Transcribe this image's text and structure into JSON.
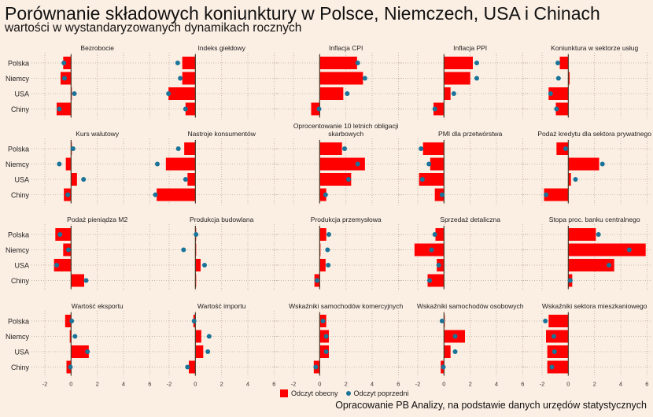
{
  "header": {
    "title": "Porównanie składowych koniunktury w Polsce, Niemczech, USA i Chinach",
    "subtitle": "wartości w wystandaryzowanych dynamikach rocznych"
  },
  "caption": "Opracowanie PB Analizy, na podstawie danych urzędów statystycznych",
  "legend": {
    "current": "Odczyt obecny",
    "previous": "Odczyt poprzedni"
  },
  "colors": {
    "bar": "#ff0000",
    "dot": "#1a7499",
    "background": "#fbeee3",
    "grid": "#b8aa9c",
    "axis": "#4a3a2a"
  },
  "chart_data": {
    "type": "bar",
    "orientation": "horizontal",
    "facets": "small-multiples 4x5",
    "categories": [
      "Polska",
      "Niemcy",
      "USA",
      "Chiny"
    ],
    "xlim": [
      -2,
      6
    ],
    "xticks": [
      "-2",
      "0",
      "2",
      "4",
      "6"
    ],
    "grid": true,
    "legend_position": "bottom",
    "series_names": [
      "Odczyt obecny",
      "Odczyt poprzedni"
    ],
    "panels": [
      {
        "title": "Bezrobocie",
        "current": [
          -0.6,
          -0.8,
          0.05,
          -1.1
        ],
        "previous": [
          -0.55,
          -0.5,
          0.25,
          -0.9
        ]
      },
      {
        "title": "Indeks giełdowy",
        "current": [
          -1.0,
          -1.0,
          -2.05,
          -0.75
        ],
        "previous": [
          -1.35,
          -1.15,
          -2.05,
          -0.75
        ]
      },
      {
        "title": "Inflacja CPI",
        "current": [
          2.85,
          3.3,
          1.8,
          -0.65
        ],
        "previous": [
          2.9,
          3.45,
          2.1,
          -0.05
        ]
      },
      {
        "title": "Inflacja PPI",
        "current": [
          2.2,
          2.0,
          0.5,
          -0.8
        ],
        "previous": [
          2.5,
          2.5,
          0.75,
          -0.7
        ]
      },
      {
        "title": "Koniunktura w sektorze usług",
        "current": [
          -0.65,
          0.1,
          -1.5,
          -0.95
        ],
        "previous": [
          -0.8,
          -0.75,
          -1.35,
          -0.9
        ]
      },
      {
        "title": "Kurs walutowy",
        "current": [
          0.0,
          -0.4,
          0.45,
          -0.55
        ],
        "previous": [
          0.15,
          -0.9,
          0.95,
          -0.25
        ]
      },
      {
        "title": "Nastroje konsumentów",
        "current": [
          -0.85,
          -2.25,
          -0.6,
          -2.95
        ],
        "previous": [
          -1.3,
          -2.9,
          -0.75,
          -3.05
        ]
      },
      {
        "title": "Oprocentowanie 10 letnich obligacji skarbowych",
        "current": [
          1.7,
          3.45,
          2.4,
          0.5
        ],
        "previous": [
          1.9,
          2.9,
          2.2,
          0.45
        ]
      },
      {
        "title": "PMI dla przetwórstwa",
        "current": [
          -1.6,
          -1.05,
          -1.9,
          -0.7
        ],
        "previous": [
          -1.75,
          -1.15,
          -1.65,
          -0.15
        ]
      },
      {
        "title": "Podaż kredytu dla sektora prywatnego",
        "current": [
          -0.9,
          2.35,
          0.2,
          -1.85
        ],
        "previous": [
          -0.2,
          2.6,
          0.55,
          -1.7
        ]
      },
      {
        "title": "Podaż pieniądza M2",
        "current": [
          -1.2,
          -0.6,
          -1.3,
          1.0
        ],
        "previous": [
          -0.85,
          -0.2,
          -1.1,
          1.15
        ]
      },
      {
        "title": "Produkcja budowlana",
        "current": [
          0.02,
          0.02,
          0.4,
          0.0
        ],
        "previous": [
          0.05,
          -0.9,
          0.7,
          null
        ]
      },
      {
        "title": "Produkcja przemysłowa",
        "current": [
          0.5,
          0.0,
          0.45,
          -0.4
        ],
        "previous": [
          0.7,
          0.6,
          0.65,
          -0.2
        ]
      },
      {
        "title": "Sprzedaż detaliczna",
        "current": [
          -0.65,
          -2.25,
          -0.55,
          -1.25
        ],
        "previous": [
          -0.7,
          -0.95,
          -0.4,
          -1.1
        ]
      },
      {
        "title": "Stopa proc. banku centralnego",
        "current": [
          2.1,
          5.9,
          3.5,
          0.3
        ],
        "previous": [
          2.3,
          4.65,
          3.1,
          0.15
        ]
      },
      {
        "title": "Wartość eksportu",
        "current": [
          -0.45,
          -0.1,
          1.35,
          -0.35
        ],
        "previous": [
          0.05,
          0.3,
          1.25,
          -0.05
        ]
      },
      {
        "title": "Wartość importu",
        "current": [
          -0.15,
          0.45,
          0.6,
          -0.5
        ],
        "previous": [
          -0.1,
          1.05,
          0.95,
          -0.6
        ]
      },
      {
        "title": "Wskaźniki samochodów komercyjnych",
        "current": [
          0.5,
          0.7,
          0.7,
          -0.45
        ],
        "previous": [
          0.25,
          0.5,
          0.5,
          -0.3
        ]
      },
      {
        "title": "Wskaźniki samochodów osobowych",
        "current": [
          0.0,
          1.6,
          0.5,
          -0.25
        ],
        "previous": [
          -0.15,
          0.85,
          0.85,
          -0.05
        ]
      },
      {
        "title": "Wskaźniki sektora mieszkaniowego",
        "current": [
          -1.5,
          -1.7,
          -1.6,
          -1.6
        ],
        "previous": [
          -1.75,
          -1.1,
          -1.05,
          -1.25
        ]
      }
    ]
  }
}
